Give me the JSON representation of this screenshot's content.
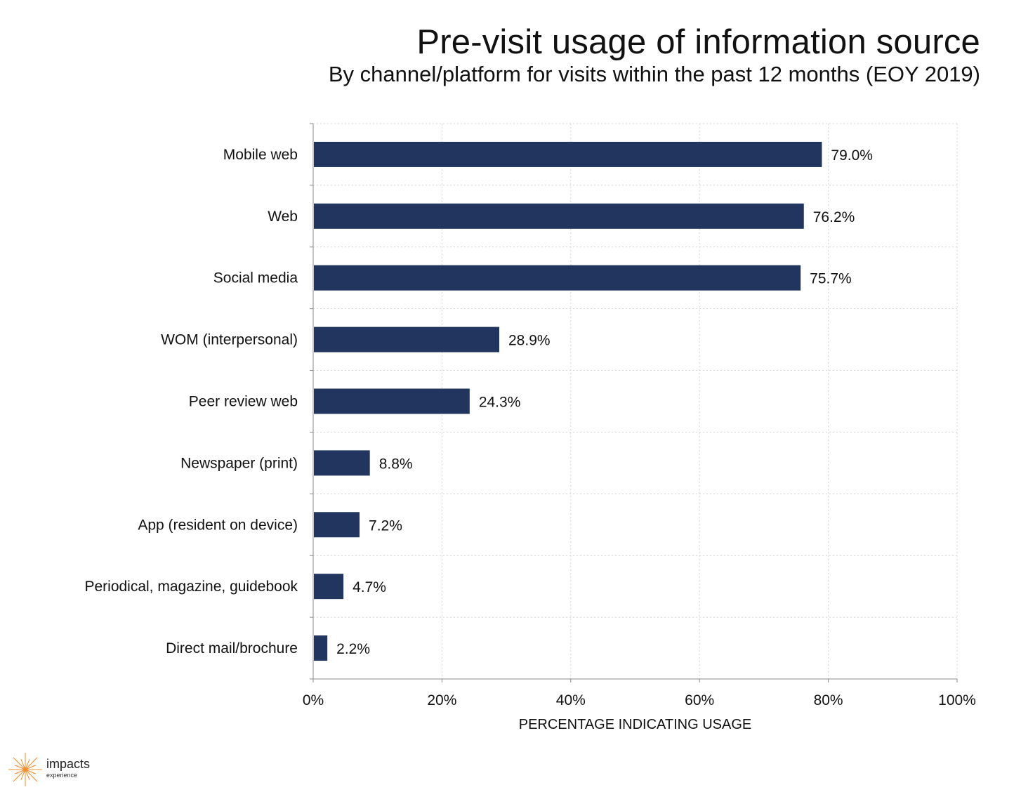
{
  "header": {
    "title": "Pre-visit usage of information source",
    "subtitle": "By channel/platform for visits within the past 12 months (EOY 2019)"
  },
  "chart_data": {
    "type": "bar",
    "orientation": "horizontal",
    "title": "Pre-visit usage of information source",
    "subtitle": "By channel/platform for visits within the past 12 months (EOY 2019)",
    "categories": [
      "Mobile web",
      "Web",
      "Social media",
      "WOM (interpersonal)",
      "Peer review web",
      "Newspaper (print)",
      "App (resident on device)",
      "Periodical, magazine, guidebook",
      "Direct mail/brochure"
    ],
    "values": [
      79.0,
      76.2,
      75.7,
      28.9,
      24.3,
      8.8,
      7.2,
      4.7,
      2.2
    ],
    "data_labels": [
      "79.0%",
      "76.2%",
      "75.7%",
      "28.9%",
      "24.3%",
      "8.8%",
      "7.2%",
      "4.7%",
      "2.2%"
    ],
    "xlabel": "PERCENTAGE INDICATING USAGE",
    "ylabel": "",
    "xlim": [
      0,
      100
    ],
    "xticks": [
      0,
      20,
      40,
      60,
      80,
      100
    ],
    "xtick_labels": [
      "0%",
      "20%",
      "40%",
      "60%",
      "80%",
      "100%"
    ],
    "grid": true,
    "legend": "none",
    "bar_color": "#21355f"
  },
  "logo": {
    "word": "impacts",
    "sub": "experience",
    "color": "#f28c28"
  }
}
